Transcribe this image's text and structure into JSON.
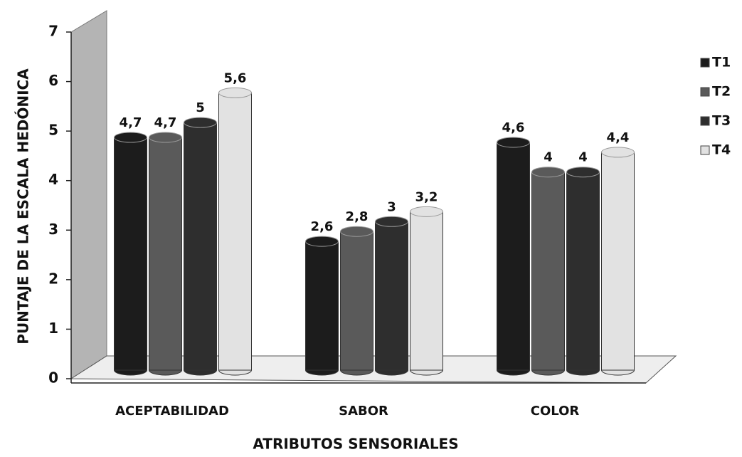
{
  "chart_data": {
    "type": "bar",
    "y_label": "PUNTAJE DE LA ESCALA HEDÓNICA",
    "x_label": "ATRIBUTOS SENSORIALES",
    "categories": [
      "ACEPTABILIDAD",
      "SABOR",
      "COLOR"
    ],
    "series": [
      {
        "name": "T1",
        "color": "#1c1c1c",
        "values": [
          4.7,
          2.6,
          4.6
        ],
        "value_labels": [
          "4,7",
          "2,6",
          "4,6"
        ]
      },
      {
        "name": "T2",
        "color": "#5a5a5a",
        "values": [
          4.7,
          2.8,
          4
        ],
        "value_labels": [
          "4,7",
          "2,8",
          "4"
        ]
      },
      {
        "name": "T3",
        "color": "#2e2e2e",
        "values": [
          5,
          3,
          4
        ],
        "value_labels": [
          "5",
          "3",
          "4"
        ]
      },
      {
        "name": "T4",
        "color": "#e2e2e2",
        "values": [
          5.6,
          3.2,
          4.4
        ],
        "value_labels": [
          "5,6",
          "3,2",
          "4,4"
        ]
      }
    ],
    "ylim": [
      0,
      7
    ],
    "yticks": [
      0,
      1,
      2,
      3,
      4,
      5,
      6,
      7
    ],
    "legend": "right"
  }
}
